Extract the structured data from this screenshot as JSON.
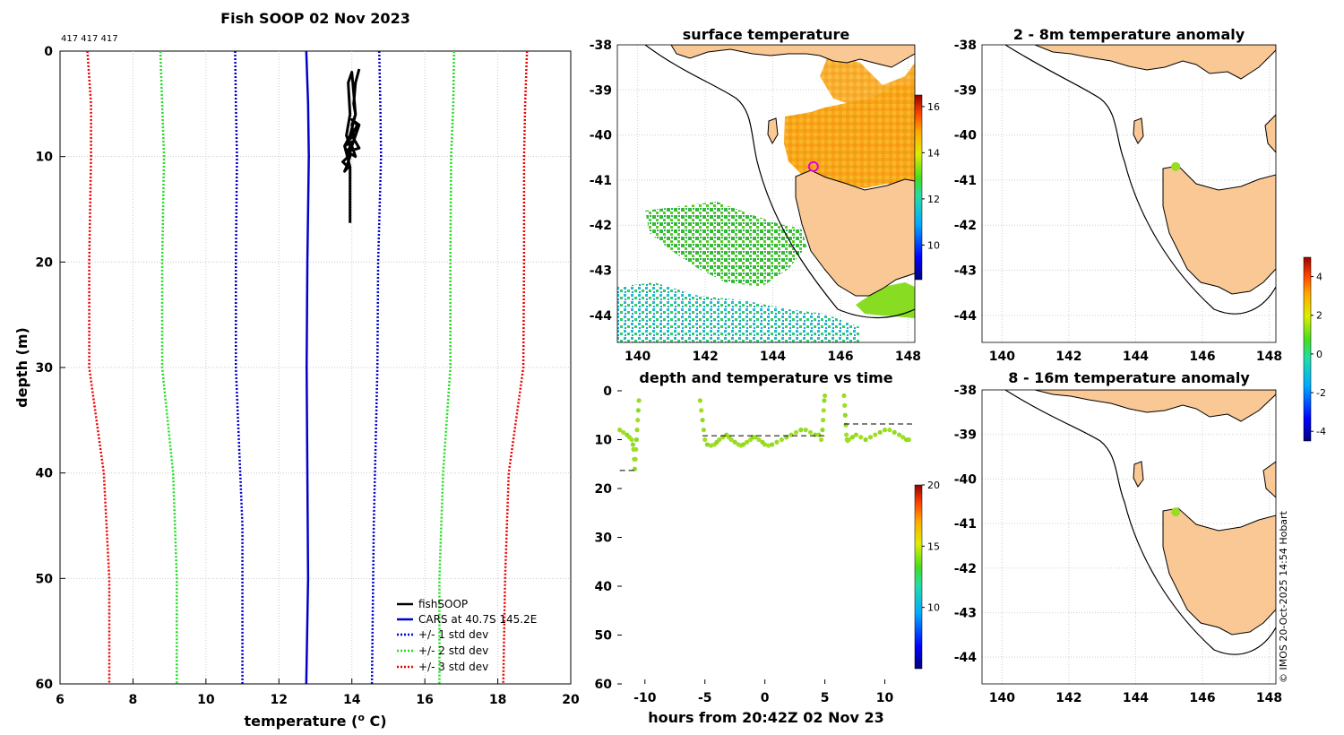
{
  "figure_title": "Fish SOOP 02 Nov 2023",
  "count_label": "417 417 417",
  "credit": "© IMOS 20-Oct-2025 14:54 Hobart",
  "colors": {
    "fishsoop": "#000000",
    "cars": "#0000cc",
    "sd1": "#0000cc",
    "sd2": "#22dd22",
    "sd3": "#ee0000",
    "land": "#f9c894",
    "coast": "#000000"
  },
  "chart_data": [
    {
      "type": "line",
      "id": "profile",
      "title": "Fish SOOP 02 Nov 2023",
      "xlabel": "temperature (",
      "xlabel_sup": "o",
      "xlabel_end": " C)",
      "ylabel": "depth (m)",
      "xlim": [
        6,
        20
      ],
      "ylim": [
        0,
        60
      ],
      "xticks": [
        "6",
        "8",
        "10",
        "12",
        "14",
        "16",
        "18",
        "20"
      ],
      "yticks": [
        "0",
        "10",
        "20",
        "30",
        "40",
        "50",
        "60"
      ],
      "grid": true,
      "legend_position": "bottom-right",
      "series": [
        {
          "name": "fishSOOP",
          "style": "solid",
          "color": "#000000",
          "x": [
            14.2,
            14.1,
            14.05,
            14.1,
            14.0,
            14.05,
            13.9,
            14.0,
            13.85,
            14.1,
            14.0,
            14.1,
            14.2,
            14.0,
            14.15,
            14.0,
            14.2,
            13.9,
            14.0,
            13.8,
            13.9,
            13.75,
            13.9,
            13.8,
            13.85,
            13.95,
            13.95,
            13.85,
            13.95,
            13.9,
            14.0,
            14.1,
            13.95,
            13.8,
            13.95,
            13.95
          ],
          "y": [
            1.7,
            3,
            5,
            6,
            7,
            8,
            8.5,
            9,
            9.5,
            10,
            9,
            8,
            7,
            6.5,
            7,
            8,
            9.2,
            9.5,
            8.6,
            9,
            10,
            10.5,
            11,
            11.4,
            11,
            10,
            9,
            8,
            6,
            3,
            2,
            6,
            8,
            9,
            11,
            16.3
          ]
        },
        {
          "name": "CARS at 40.7S 145.2E",
          "style": "solid",
          "color": "#0000cc",
          "x": [
            12.75,
            12.8,
            12.82,
            12.78,
            12.76,
            12.8,
            12.75
          ],
          "y": [
            0,
            5,
            10,
            20,
            30,
            50,
            60
          ]
        },
        {
          "name": "+/- 1 std dev",
          "style": "dotted",
          "color": "#0000cc",
          "x_low": [
            10.8,
            10.82,
            10.85,
            10.82,
            10.82,
            11.0,
            11.0
          ],
          "x_high": [
            14.75,
            14.78,
            14.8,
            14.72,
            14.7,
            14.6,
            14.55
          ],
          "y": [
            0,
            5,
            10,
            20,
            30,
            45,
            60
          ]
        },
        {
          "name": "+/- 2 std dev",
          "style": "dotted",
          "color": "#22dd22",
          "x_low": [
            8.75,
            8.8,
            8.85,
            8.8,
            8.8,
            9.1,
            9.2,
            9.2
          ],
          "x_high": [
            16.8,
            16.78,
            16.72,
            16.7,
            16.7,
            16.5,
            16.4,
            16.4
          ],
          "y": [
            0,
            5,
            10,
            20,
            30,
            40,
            50,
            60
          ]
        },
        {
          "name": "+/- 3 std dev",
          "style": "dotted",
          "color": "#ee0000",
          "x_low": [
            6.75,
            6.85,
            6.85,
            6.8,
            6.8,
            7.2,
            7.35,
            7.35
          ],
          "x_high": [
            18.8,
            18.75,
            18.72,
            18.72,
            18.7,
            18.3,
            18.2,
            18.15
          ],
          "y": [
            0,
            5,
            10,
            20,
            30,
            40,
            50,
            60
          ]
        }
      ]
    },
    {
      "type": "map",
      "id": "sst",
      "title": "surface temperature",
      "xticks": [
        "140",
        "142",
        "144",
        "146",
        "148"
      ],
      "yticks": [
        "-38",
        "-39",
        "-40",
        "-41",
        "-42",
        "-43",
        "-44"
      ],
      "xlim": [
        139.4,
        148.2
      ],
      "ylim": [
        -44.6,
        -38
      ],
      "colorbar": {
        "ticks": [
          "10",
          "12",
          "14",
          "16"
        ],
        "range": [
          8.5,
          16.5
        ]
      },
      "marker": {
        "lon": 145.2,
        "lat": -40.7,
        "color": "#dd00dd"
      }
    },
    {
      "type": "scatter",
      "id": "dvt",
      "title": "depth and temperature vs time",
      "xlabel": "hours from 20:42Z 02 Nov 23",
      "xlim": [
        -12.3,
        12.5
      ],
      "ylim": [
        0,
        60
      ],
      "xticks": [
        "-10",
        "-5",
        "0",
        "5",
        "10"
      ],
      "yticks": [
        "0",
        "10",
        "20",
        "30",
        "40",
        "50",
        "60"
      ],
      "colorbar": {
        "ticks": [
          "10",
          "15",
          "20"
        ],
        "range": [
          5,
          20
        ]
      },
      "segments": [
        {
          "t": [
            -12.1,
            -11.8,
            -11.5,
            -11.3,
            -11.1,
            -11.0,
            -10.95,
            -10.9,
            -10.85,
            -10.8,
            -10.75,
            -10.7,
            -10.65,
            -10.6,
            -10.55,
            -10.5
          ],
          "d": [
            8,
            8.5,
            9,
            9.5,
            10,
            11,
            12,
            14,
            16,
            14,
            12,
            10,
            8,
            6,
            4,
            2
          ]
        },
        {
          "t": [
            -5.4,
            -5.3,
            -5.2,
            -5.1,
            -5.0,
            -4.8,
            -4.5,
            -4.2,
            -4.0,
            -3.8,
            -3.5,
            -3.2,
            -3.0,
            -2.8,
            -2.5,
            -2.2,
            -2.0,
            -1.8,
            -1.5,
            -1.2,
            -1.0,
            -0.8,
            -0.5,
            -0.2,
            0,
            0.3,
            0.6,
            1.0,
            1.4,
            1.8,
            2.2,
            2.6,
            3.0,
            3.4,
            3.8,
            4.2,
            4.5,
            4.7,
            4.8,
            4.85,
            4.9,
            4.95,
            5.0
          ],
          "d": [
            2,
            4,
            6,
            8,
            10,
            11,
            11.2,
            11,
            10.5,
            10,
            9.5,
            9,
            9.5,
            10,
            10.5,
            11,
            11.2,
            11,
            10.5,
            10,
            9.5,
            9.5,
            10,
            10.5,
            11,
            11.2,
            11,
            10.5,
            10,
            9.5,
            9,
            8.5,
            8,
            8,
            8.5,
            9,
            9,
            10,
            8,
            6,
            4,
            2,
            1
          ]
        },
        {
          "t": [
            6.6,
            6.65,
            6.7,
            6.75,
            6.8,
            6.85,
            6.9,
            7.0,
            7.3,
            7.6,
            8.0,
            8.4,
            8.8,
            9.2,
            9.6,
            10.0,
            10.4,
            10.8,
            11.2,
            11.5,
            11.8,
            12.0
          ],
          "d": [
            1,
            3,
            5,
            7,
            9,
            10,
            10.2,
            10,
            9.5,
            9,
            9.5,
            10,
            9.5,
            9,
            8.5,
            8,
            8,
            8.5,
            9,
            9.5,
            10,
            10
          ]
        }
      ],
      "reference_lines": [
        {
          "t0": -12.1,
          "t1": -10.6,
          "d": 16.3
        },
        {
          "t0": -5.2,
          "t1": 5.0,
          "d": 9.2
        },
        {
          "t0": 6.6,
          "t1": 12.3,
          "d": 6.8
        }
      ]
    },
    {
      "type": "map",
      "id": "anom1",
      "title": "2 - 8m temperature anomaly",
      "xticks": [
        "140",
        "142",
        "144",
        "146",
        "148"
      ],
      "yticks": [
        "-38",
        "-39",
        "-40",
        "-41",
        "-42",
        "-43",
        "-44"
      ],
      "colorbar": {
        "ticks": [
          "4",
          "2",
          "0",
          "-2",
          "-4"
        ],
        "range": [
          -4.5,
          5
        ]
      },
      "marker": {
        "lon": 145.2,
        "lat": -40.7,
        "color": "#99dd22"
      }
    },
    {
      "type": "map",
      "id": "anom2",
      "title": "8 - 16m temperature anomaly",
      "xticks": [
        "140",
        "142",
        "144",
        "146",
        "148"
      ],
      "yticks": [
        "-38",
        "-39",
        "-40",
        "-41",
        "-42",
        "-43",
        "-44"
      ],
      "marker": {
        "lon": 145.2,
        "lat": -40.7,
        "color": "#99dd22"
      }
    }
  ]
}
